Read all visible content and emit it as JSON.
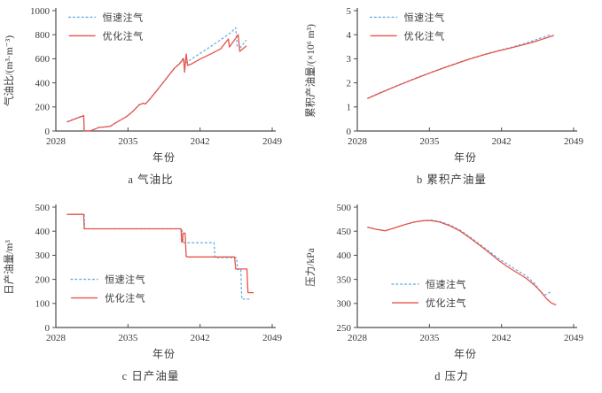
{
  "figure": {
    "background": "#ffffff",
    "axis_color": "#4d4d4d",
    "text_color": "#3a3a3a"
  },
  "colors": {
    "constant_rate_injection": "#68ade0",
    "optimized_injection": "#e8534a"
  },
  "chart_data": [
    {
      "type": "line",
      "caption": "a 气油比",
      "xlabel": "年份",
      "ylabel": "气油比/(m³·m⁻³)",
      "xlim": [
        2028,
        2049
      ],
      "ylim": [
        0,
        1000
      ],
      "xticks": [
        2028,
        2035,
        2042,
        2049
      ],
      "yticks": [
        0,
        200,
        400,
        600,
        800,
        1000
      ],
      "grid": false,
      "legend": {
        "fx": 0.06,
        "fy": 0.055,
        "entries": [
          {
            "label": "恒速注气",
            "color": "#68ade0",
            "style": "dotted"
          },
          {
            "label": "优化注气",
            "color": "#e8534a",
            "style": "solid"
          }
        ]
      },
      "series": [
        {
          "name": "constant-rate-injection",
          "color": "#68ade0",
          "style": "dotted",
          "points": [
            [
              2029.1,
              78
            ],
            [
              2030.7,
              130
            ],
            [
              2030.75,
              0
            ],
            [
              2031.4,
              3
            ],
            [
              2031.9,
              20
            ],
            [
              2032.2,
              30
            ],
            [
              2032.7,
              34
            ],
            [
              2033.3,
              41
            ],
            [
              2033.7,
              63
            ],
            [
              2034.3,
              93
            ],
            [
              2034.9,
              123
            ],
            [
              2035.5,
              166
            ],
            [
              2036.1,
              220
            ],
            [
              2036.5,
              232
            ],
            [
              2036.7,
              226
            ],
            [
              2037.1,
              264
            ],
            [
              2037.7,
              327
            ],
            [
              2038.3,
              392
            ],
            [
              2038.9,
              457
            ],
            [
              2039.5,
              522
            ],
            [
              2040.0,
              560
            ],
            [
              2040.35,
              605
            ],
            [
              2040.5,
              560
            ],
            [
              2041.0,
              588
            ],
            [
              2042.0,
              645
            ],
            [
              2043.0,
              700
            ],
            [
              2044.0,
              758
            ],
            [
              2045.0,
              818
            ],
            [
              2045.45,
              858
            ],
            [
              2045.6,
              706
            ],
            [
              2045.95,
              696
            ],
            [
              2046.45,
              752
            ]
          ]
        },
        {
          "name": "optimized-injection",
          "color": "#e8534a",
          "style": "solid",
          "points": [
            [
              2029.1,
              75
            ],
            [
              2030.7,
              128
            ],
            [
              2030.75,
              0
            ],
            [
              2031.4,
              3
            ],
            [
              2031.9,
              20
            ],
            [
              2032.2,
              30
            ],
            [
              2032.7,
              33
            ],
            [
              2033.3,
              40
            ],
            [
              2033.7,
              62
            ],
            [
              2034.3,
              92
            ],
            [
              2034.9,
              122
            ],
            [
              2035.5,
              165
            ],
            [
              2036.1,
              218
            ],
            [
              2036.5,
              230
            ],
            [
              2036.7,
              224
            ],
            [
              2037.1,
              262
            ],
            [
              2037.7,
              325
            ],
            [
              2038.3,
              390
            ],
            [
              2038.9,
              455
            ],
            [
              2039.5,
              520
            ],
            [
              2040.0,
              558
            ],
            [
              2040.4,
              600
            ],
            [
              2040.5,
              488
            ],
            [
              2040.65,
              640
            ],
            [
              2040.8,
              545
            ],
            [
              2041.2,
              558
            ],
            [
              2042.0,
              598
            ],
            [
              2043.0,
              638
            ],
            [
              2044.0,
              682
            ],
            [
              2044.75,
              765
            ],
            [
              2044.85,
              698
            ],
            [
              2045.7,
              800
            ],
            [
              2045.85,
              662
            ],
            [
              2046.5,
              708
            ]
          ]
        }
      ]
    },
    {
      "type": "line",
      "caption": "b 累积产油量",
      "xlabel": "年份",
      "ylabel": "累积产油量/(×10⁶ m³)",
      "xlim": [
        2028,
        2049
      ],
      "ylim": [
        0,
        5
      ],
      "xticks": [
        2028,
        2035,
        2042,
        2049
      ],
      "yticks": [
        0,
        1,
        2,
        3,
        4,
        5
      ],
      "grid": false,
      "legend": {
        "fx": 0.06,
        "fy": 0.055,
        "entries": [
          {
            "label": "恒速注气",
            "color": "#68ade0",
            "style": "dotted"
          },
          {
            "label": "优化注气",
            "color": "#e8534a",
            "style": "solid"
          }
        ]
      },
      "series": [
        {
          "name": "constant-rate-injection",
          "color": "#68ade0",
          "style": "dotted",
          "points": [
            [
              2029,
              1.36
            ],
            [
              2030,
              1.55
            ],
            [
              2031,
              1.73
            ],
            [
              2032,
              1.91
            ],
            [
              2033,
              2.08
            ],
            [
              2034,
              2.25
            ],
            [
              2035,
              2.41
            ],
            [
              2036,
              2.57
            ],
            [
              2037,
              2.72
            ],
            [
              2038,
              2.87
            ],
            [
              2039,
              3.01
            ],
            [
              2040,
              3.14
            ],
            [
              2041,
              3.26
            ],
            [
              2042,
              3.37
            ],
            [
              2043,
              3.48
            ],
            [
              2044,
              3.6
            ],
            [
              2045,
              3.74
            ],
            [
              2046,
              3.89
            ],
            [
              2046.9,
              4.02
            ]
          ]
        },
        {
          "name": "optimized-injection",
          "color": "#e8534a",
          "style": "solid",
          "points": [
            [
              2029,
              1.35
            ],
            [
              2030,
              1.54
            ],
            [
              2031,
              1.72
            ],
            [
              2032,
              1.9
            ],
            [
              2033,
              2.07
            ],
            [
              2034,
              2.24
            ],
            [
              2035,
              2.4
            ],
            [
              2036,
              2.56
            ],
            [
              2037,
              2.71
            ],
            [
              2038,
              2.86
            ],
            [
              2039,
              3.0
            ],
            [
              2040,
              3.13
            ],
            [
              2041,
              3.25
            ],
            [
              2042,
              3.36
            ],
            [
              2043,
              3.46
            ],
            [
              2044,
              3.57
            ],
            [
              2045,
              3.68
            ],
            [
              2046,
              3.82
            ],
            [
              2047.1,
              3.97
            ]
          ]
        }
      ]
    },
    {
      "type": "line",
      "caption": "c 日产油量",
      "xlabel": "年份",
      "ylabel": "日产油量/m³",
      "xlim": [
        2028,
        2049
      ],
      "ylim": [
        0,
        500
      ],
      "xticks": [
        2028,
        2035,
        2042,
        2049
      ],
      "yticks": [
        0,
        100,
        200,
        300,
        400,
        500
      ],
      "grid": false,
      "legend": {
        "fx": 0.07,
        "fy": 0.6,
        "entries": [
          {
            "label": "恒速注气",
            "color": "#68ade0",
            "style": "dotted"
          },
          {
            "label": "优化注气",
            "color": "#e8534a",
            "style": "solid"
          }
        ]
      },
      "series": [
        {
          "name": "constant-rate-injection",
          "color": "#68ade0",
          "style": "dotted",
          "points": [
            [
              2029.1,
              470
            ],
            [
              2030.75,
              470
            ],
            [
              2030.8,
              410
            ],
            [
              2040.25,
              410
            ],
            [
              2040.35,
              352
            ],
            [
              2043.35,
              352
            ],
            [
              2043.45,
              290
            ],
            [
              2045.55,
              290
            ],
            [
              2045.65,
              240
            ],
            [
              2045.95,
              240
            ],
            [
              2046.05,
              118
            ],
            [
              2046.85,
              118
            ]
          ]
        },
        {
          "name": "optimized-injection",
          "color": "#e8534a",
          "style": "solid",
          "points": [
            [
              2029.1,
              470
            ],
            [
              2030.7,
              470
            ],
            [
              2030.75,
              410
            ],
            [
              2040.15,
              410
            ],
            [
              2040.2,
              355
            ],
            [
              2040.3,
              355
            ],
            [
              2040.35,
              392
            ],
            [
              2040.55,
              392
            ],
            [
              2040.65,
              295
            ],
            [
              2040.9,
              293
            ],
            [
              2045.35,
              293
            ],
            [
              2045.45,
              243
            ],
            [
              2046.55,
              243
            ],
            [
              2046.65,
              145
            ],
            [
              2047.2,
              145
            ]
          ]
        }
      ]
    },
    {
      "type": "line",
      "caption": "d 压力",
      "xlabel": "年份",
      "ylabel": "压力/kPa",
      "xlim": [
        2028,
        2049
      ],
      "ylim": [
        250,
        500
      ],
      "xticks": [
        2028,
        2035,
        2042,
        2049
      ],
      "yticks": [
        250,
        300,
        350,
        400,
        450,
        500
      ],
      "grid": false,
      "legend": {
        "fx": 0.16,
        "fy": 0.64,
        "entries": [
          {
            "label": "恒速注气",
            "color": "#68ade0",
            "style": "dotted"
          },
          {
            "label": "优化注气",
            "color": "#e8534a",
            "style": "solid"
          }
        ]
      },
      "series": [
        {
          "name": "constant-rate-injection",
          "color": "#68ade0",
          "style": "dotted",
          "points": [
            [
              2029,
              458
            ],
            [
              2029.8,
              454
            ],
            [
              2030.7,
              451
            ],
            [
              2031.5,
              456
            ],
            [
              2032.5,
              463
            ],
            [
              2033.5,
              469
            ],
            [
              2034.5,
              472
            ],
            [
              2035.2,
              473
            ],
            [
              2036,
              470
            ],
            [
              2037,
              463
            ],
            [
              2038,
              452
            ],
            [
              2039,
              437
            ],
            [
              2040,
              421
            ],
            [
              2041,
              405
            ],
            [
              2041.8,
              392
            ],
            [
              2042.6,
              381
            ],
            [
              2043.5,
              369
            ],
            [
              2044.4,
              357
            ],
            [
              2045.2,
              342
            ],
            [
              2045.8,
              324
            ],
            [
              2046.1,
              317
            ],
            [
              2046.5,
              320
            ],
            [
              2046.9,
              327
            ]
          ]
        },
        {
          "name": "optimized-injection",
          "color": "#e8534a",
          "style": "solid",
          "points": [
            [
              2029,
              458
            ],
            [
              2029.8,
              454
            ],
            [
              2030.7,
              451
            ],
            [
              2031.5,
              456
            ],
            [
              2032.5,
              463
            ],
            [
              2033.5,
              469
            ],
            [
              2034.5,
              472
            ],
            [
              2035.2,
              472
            ],
            [
              2036,
              469
            ],
            [
              2037,
              461
            ],
            [
              2038,
              450
            ],
            [
              2039,
              435
            ],
            [
              2040,
              419
            ],
            [
              2041,
              402
            ],
            [
              2041.8,
              388
            ],
            [
              2042.6,
              376
            ],
            [
              2043.5,
              364
            ],
            [
              2044.4,
              352
            ],
            [
              2045.2,
              338
            ],
            [
              2045.8,
              325
            ],
            [
              2046.4,
              309
            ],
            [
              2046.9,
              300
            ],
            [
              2047.3,
              297
            ]
          ]
        }
      ]
    }
  ]
}
